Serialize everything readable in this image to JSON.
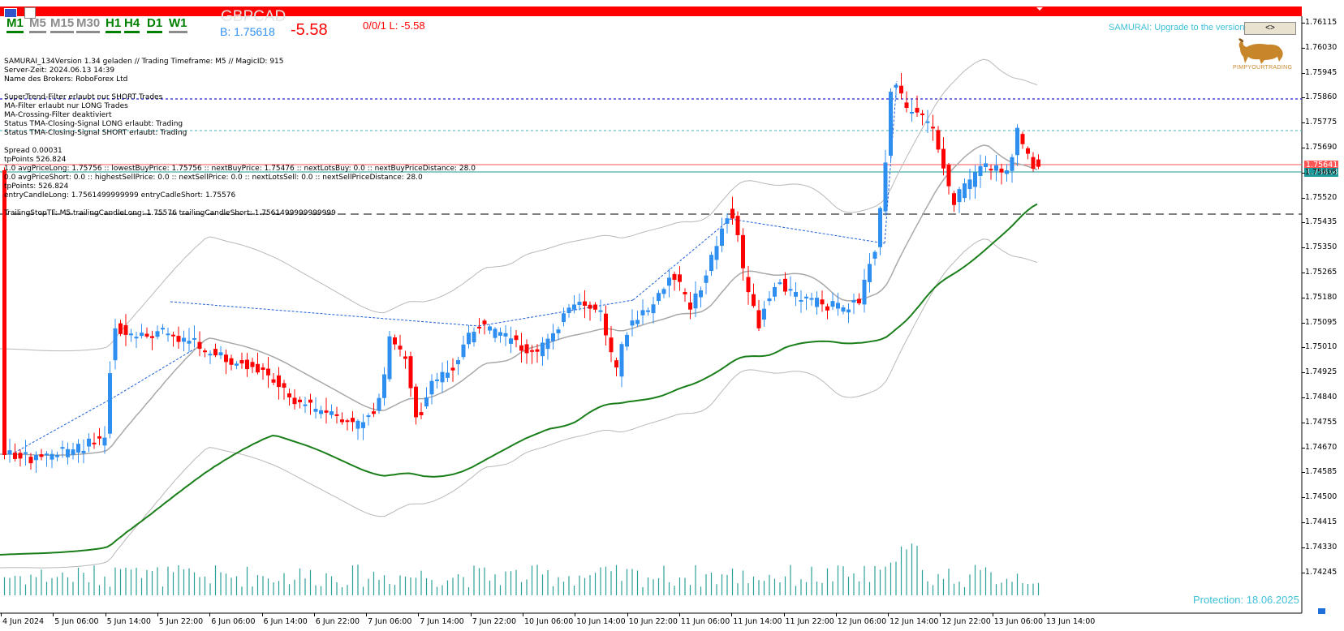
{
  "header": {
    "symbol": "GBPCAD",
    "bid_label": "B: 1.75618",
    "profit": "-5.58",
    "orders_summary": "0/0/1 L: -5.58"
  },
  "timeframes": [
    {
      "label": "M1",
      "color": "#008000",
      "underline": "#008000"
    },
    {
      "label": "M5",
      "color": "#8c8c8c",
      "underline": "#8c8c8c"
    },
    {
      "label": "M15",
      "color": "#8c8c8c",
      "underline": "#8c8c8c"
    },
    {
      "label": "M30",
      "color": "#8c8c8c",
      "underline": "#8c8c8c"
    },
    {
      "label": "H1",
      "color": "#008000",
      "underline": "#008000"
    },
    {
      "label": "H4",
      "color": "#008000",
      "underline": "#008000"
    },
    {
      "label": "D1",
      "color": "#008000",
      "underline": "#008000"
    },
    {
      "label": "W1",
      "color": "#008000",
      "underline": "#8c8c8c"
    }
  ],
  "info_lines": [
    "SAMURAI_134Version 1.34 geladen // Trading Timeframe: M5 // MagicID: 915",
    "Server-Zeit: 2024.06.13 14:39",
    "Name des Brokers: RoboForex Ltd",
    "SuperTrend-Filter erlaubt nur SHORT Trades",
    "MA-Filter erlaubt nur LONG Trades",
    "MA-Crossing-Filter deaktiviert",
    "Status TMA-Closing-Signal LONG erlaubt: Trading",
    "Status TMA-Closing-Signal SHORT erlaubt: Trading",
    "Spread 0.00031",
    "tpPoints 526.824",
    "1.0  avgPriceLong: 1.75756  ::  lowestBuyPrice:  1.75756  ::  nextBuyPrice:  1.75476  ::  nextLotsBuy: 0.0  ::  nextBuyPriceDistance: 28.0",
    "0.0  avgPriceShort: 0.0  ::  highestSellPrice:  0.0  ::  nextSellPrice:  0.0  ::  nextLotsSell: 0.0  ::  nextSellPriceDistance: 28.0",
    "tpPoints: 526.824",
    "entryCandleLong: 1.7561499999999 entryCadleShort: 1.75576",
    "TrailingStopTF: M5 trailingCandleLong: 1.75576 trailingCandleShort: 1.7561499999999999"
  ],
  "samurai": {
    "upgrade_text": "SAMURAI: Upgrade to the version:",
    "upgrade_button": "<>",
    "logo_text": "PIMPYOURTRADING",
    "protection": "Protection: 18.06.2025"
  },
  "price_axis": [
    "1.76115",
    "1.76030",
    "1.75945",
    "1.75860",
    "1.75775",
    "1.75690",
    "1.75605",
    "1.75520",
    "1.75435",
    "1.75350",
    "1.75265",
    "1.75180",
    "1.75095",
    "1.75010",
    "1.74925",
    "1.74840",
    "1.74755",
    "1.74670",
    "1.74585",
    "1.74500",
    "1.74415",
    "1.74330",
    "1.74245"
  ],
  "price_tags": {
    "ask": "1.75641",
    "bid": "1.75618"
  },
  "time_axis": [
    "4 Jun 2024",
    "5 Jun 06:00",
    "5 Jun 14:00",
    "5 Jun 22:00",
    "6 Jun 06:00",
    "6 Jun 14:00",
    "6 Jun 22:00",
    "7 Jun 06:00",
    "7 Jun 14:00",
    "7 Jun 22:00",
    "10 Jun 06:00",
    "10 Jun 14:00",
    "10 Jun 22:00",
    "11 Jun 06:00",
    "11 Jun 14:00",
    "11 Jun 22:00",
    "12 Jun 06:00",
    "12 Jun 14:00",
    "12 Jun 22:00",
    "13 Jun 06:00",
    "13 Jun 14:00"
  ],
  "colors": {
    "bull": "#2e8ff0",
    "bear": "#ff0000",
    "banner": "#ff0000",
    "ma_green": "#1a7f1a",
    "band_gray": "#b8b8b8",
    "volume": "#2aa198",
    "accent_cyan": "#3fc0d8"
  }
}
